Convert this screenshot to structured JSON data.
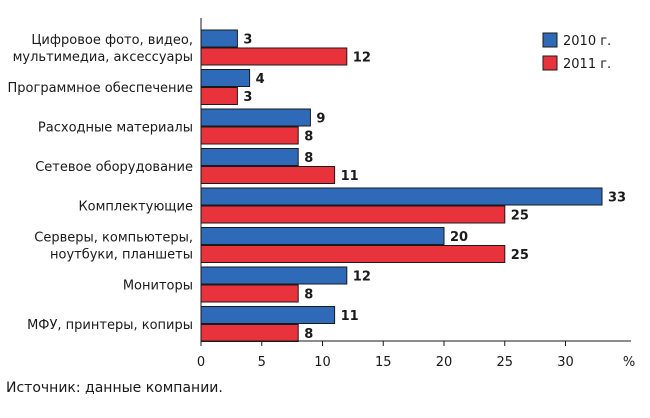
{
  "chart_data": {
    "type": "bar",
    "orientation": "horizontal",
    "categories": [
      [
        "Цифровое фото, видео,",
        "мультимедиа, аксессуары"
      ],
      [
        "Программное обеспечение"
      ],
      [
        "Расходные материалы"
      ],
      [
        "Сетевое оборудование"
      ],
      [
        "Комплектующие"
      ],
      [
        "Серверы, компьютеры,",
        "ноутбуки, планшеты"
      ],
      [
        "Мониторы"
      ],
      [
        "МФУ, принтеры, копиры"
      ]
    ],
    "series": [
      {
        "name": "2010 г.",
        "color": "#2f6ab9",
        "values": [
          3,
          4,
          9,
          8,
          33,
          20,
          12,
          11
        ]
      },
      {
        "name": "2011 г.",
        "color": "#e8333c",
        "values": [
          12,
          3,
          8,
          11,
          25,
          25,
          8,
          8
        ]
      }
    ],
    "xlim": [
      0,
      35
    ],
    "xticks": [
      0,
      5,
      10,
      15,
      20,
      25,
      30
    ],
    "xunit": "%",
    "legend_position": "top-right",
    "grid": false
  },
  "source": "Источник: данные компании."
}
